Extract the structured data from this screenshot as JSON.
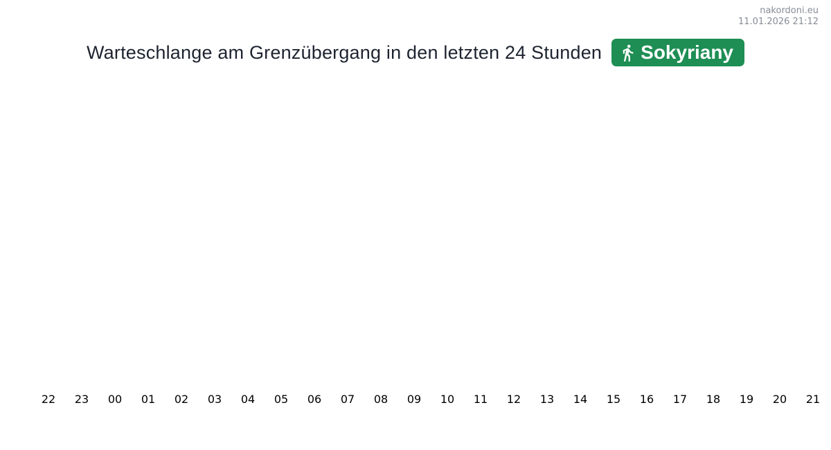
{
  "watermark": {
    "site": "nakordoni.eu",
    "timestamp": "11.01.2026 21:12"
  },
  "header": {
    "title": "Warteschlange am Grenzübergang in den letzten 24 Stunden",
    "badge": {
      "label": "Sokyriany",
      "icon": "pedestrian-icon",
      "background_color": "#1e8e54",
      "text_color": "#ffffff"
    }
  },
  "chart_data": {
    "type": "bar",
    "title": "Warteschlange am Grenzübergang in den letzten 24 Stunden",
    "categories": [
      "22",
      "23",
      "00",
      "01",
      "02",
      "03",
      "04",
      "05",
      "06",
      "07",
      "08",
      "09",
      "10",
      "11",
      "12",
      "13",
      "14",
      "15",
      "16",
      "17",
      "18",
      "19",
      "20",
      "21"
    ],
    "values": [
      0,
      0,
      0,
      0,
      0,
      0,
      0,
      0,
      0,
      0,
      0,
      0,
      0,
      0,
      0,
      0,
      0,
      0,
      0,
      0,
      0,
      0,
      0,
      0
    ],
    "xlabel": "",
    "ylabel": "",
    "legend": "none",
    "grid": false,
    "y_axis_visible": false,
    "x_tick_color": "#000000"
  }
}
